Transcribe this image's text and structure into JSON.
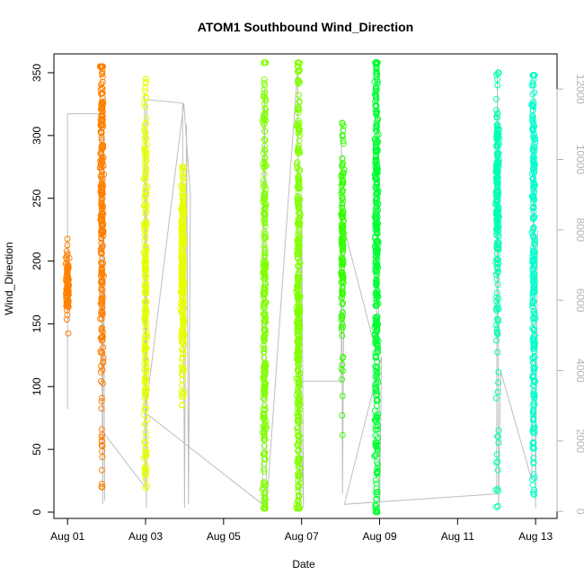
{
  "chart_data": {
    "type": "scatter",
    "title": "ATOM1 Southbound Wind_Direction",
    "xlabel": "Date",
    "ylabel": "Wind_Direction",
    "x_unit": "days_since_Aug_01",
    "xlim": [
      -0.35,
      12.55
    ],
    "ylim": [
      -5,
      365
    ],
    "y2lim": [
      -200,
      13000
    ],
    "x_ticks": [
      0,
      2,
      4,
      6,
      8,
      10,
      12
    ],
    "x_tick_labels": [
      "Aug 01",
      "Aug 03",
      "Aug 05",
      "Aug 07",
      "Aug 09",
      "Aug 11",
      "Aug 13"
    ],
    "y_ticks": [
      0,
      50,
      100,
      150,
      200,
      250,
      300,
      350
    ],
    "y2_ticks": [
      0,
      2000,
      4000,
      6000,
      8000,
      10000,
      12000
    ],
    "grid": false,
    "colors": {
      "line": "#bebebe",
      "right_axis": "#b3b3b3",
      "orange": "#ff8000",
      "yellow": "#e6ff00",
      "green_yellow": "#80ff00",
      "lime": "#33ff00",
      "green": "#00ff33",
      "aqua": "#00ffb3",
      "cyan_green": "#00ffcc"
    },
    "series": [
      {
        "color": "#ff8000",
        "clusters": [
          {
            "x": 0.0,
            "lo": 140,
            "hi": 218,
            "center": 180,
            "spread": 12,
            "n": 90
          },
          {
            "x": 0.88,
            "lo": 20,
            "hi": 355,
            "center": 255,
            "spread": 70,
            "n": 260
          }
        ]
      },
      {
        "color": "#e6ff00",
        "clusters": [
          {
            "x": 2.0,
            "lo": 18,
            "hi": 345,
            "center": 175,
            "spread": 70,
            "n": 220
          },
          {
            "x": 2.95,
            "lo": 85,
            "hi": 275,
            "center": 195,
            "spread": 45,
            "n": 240
          }
        ]
      },
      {
        "color": "#80ff00",
        "clusters": [
          {
            "x": 5.05,
            "lo": 3,
            "hi": 358,
            "center": 150,
            "spread": 110,
            "n": 280
          },
          {
            "x": 5.92,
            "lo": 3,
            "hi": 358,
            "center": 160,
            "spread": 100,
            "n": 360
          }
        ]
      },
      {
        "color": "#33ff00",
        "clusters": [
          {
            "x": 7.05,
            "lo": 55,
            "hi": 310,
            "center": 210,
            "spread": 40,
            "n": 140
          }
        ]
      },
      {
        "color": "#00ff33",
        "clusters": [
          {
            "x": 7.92,
            "lo": 0,
            "hi": 358,
            "center": 220,
            "spread": 110,
            "n": 380
          }
        ]
      },
      {
        "color": "#00ffb3",
        "clusters": [
          {
            "x": 11.02,
            "lo": 3,
            "hi": 358,
            "center": 250,
            "spread": 40,
            "n": 220
          }
        ]
      },
      {
        "color": "#00ffcc",
        "clusters": [
          {
            "x": 11.95,
            "lo": 14,
            "hi": 348,
            "center": 220,
            "spread": 90,
            "n": 260
          }
        ]
      }
    ],
    "line_series": {
      "color": "#bebebe",
      "axis": "right",
      "points": [
        [
          0.0,
          2900
        ],
        [
          0.0,
          11300
        ],
        [
          0.86,
          11300
        ],
        [
          0.86,
          9800
        ],
        [
          0.9,
          200
        ],
        [
          0.92,
          11500
        ],
        [
          0.95,
          300
        ],
        [
          0.95,
          2200
        ],
        [
          1.98,
          700
        ],
        [
          1.98,
          11900
        ],
        [
          2.02,
          100
        ],
        [
          2.03,
          11700
        ],
        [
          2.95,
          11600
        ],
        [
          2.95,
          10500
        ],
        [
          3.0,
          100
        ],
        [
          3.05,
          11000
        ],
        [
          3.1,
          200
        ],
        [
          3.15,
          9000
        ],
        [
          2.98,
          11600
        ],
        [
          2.0,
          2800
        ],
        [
          5.0,
          200
        ],
        [
          5.0,
          4000
        ],
        [
          5.05,
          12000
        ],
        [
          5.1,
          100
        ],
        [
          5.9,
          12600
        ],
        [
          5.95,
          200
        ],
        [
          6.0,
          9000
        ],
        [
          6.05,
          100
        ],
        [
          5.95,
          3700
        ],
        [
          7.02,
          3700
        ],
        [
          7.02,
          11000
        ],
        [
          7.05,
          500
        ],
        [
          7.1,
          8000
        ],
        [
          7.92,
          4500
        ],
        [
          7.95,
          12500
        ],
        [
          8.0,
          100
        ],
        [
          8.05,
          4400
        ],
        [
          7.1,
          200
        ],
        [
          11.0,
          500
        ],
        [
          11.02,
          12600
        ],
        [
          11.05,
          100
        ],
        [
          11.1,
          4000
        ],
        [
          11.9,
          900
        ],
        [
          11.95,
          12300
        ],
        [
          12.0,
          100
        ],
        [
          12.05,
          8000
        ]
      ]
    }
  }
}
